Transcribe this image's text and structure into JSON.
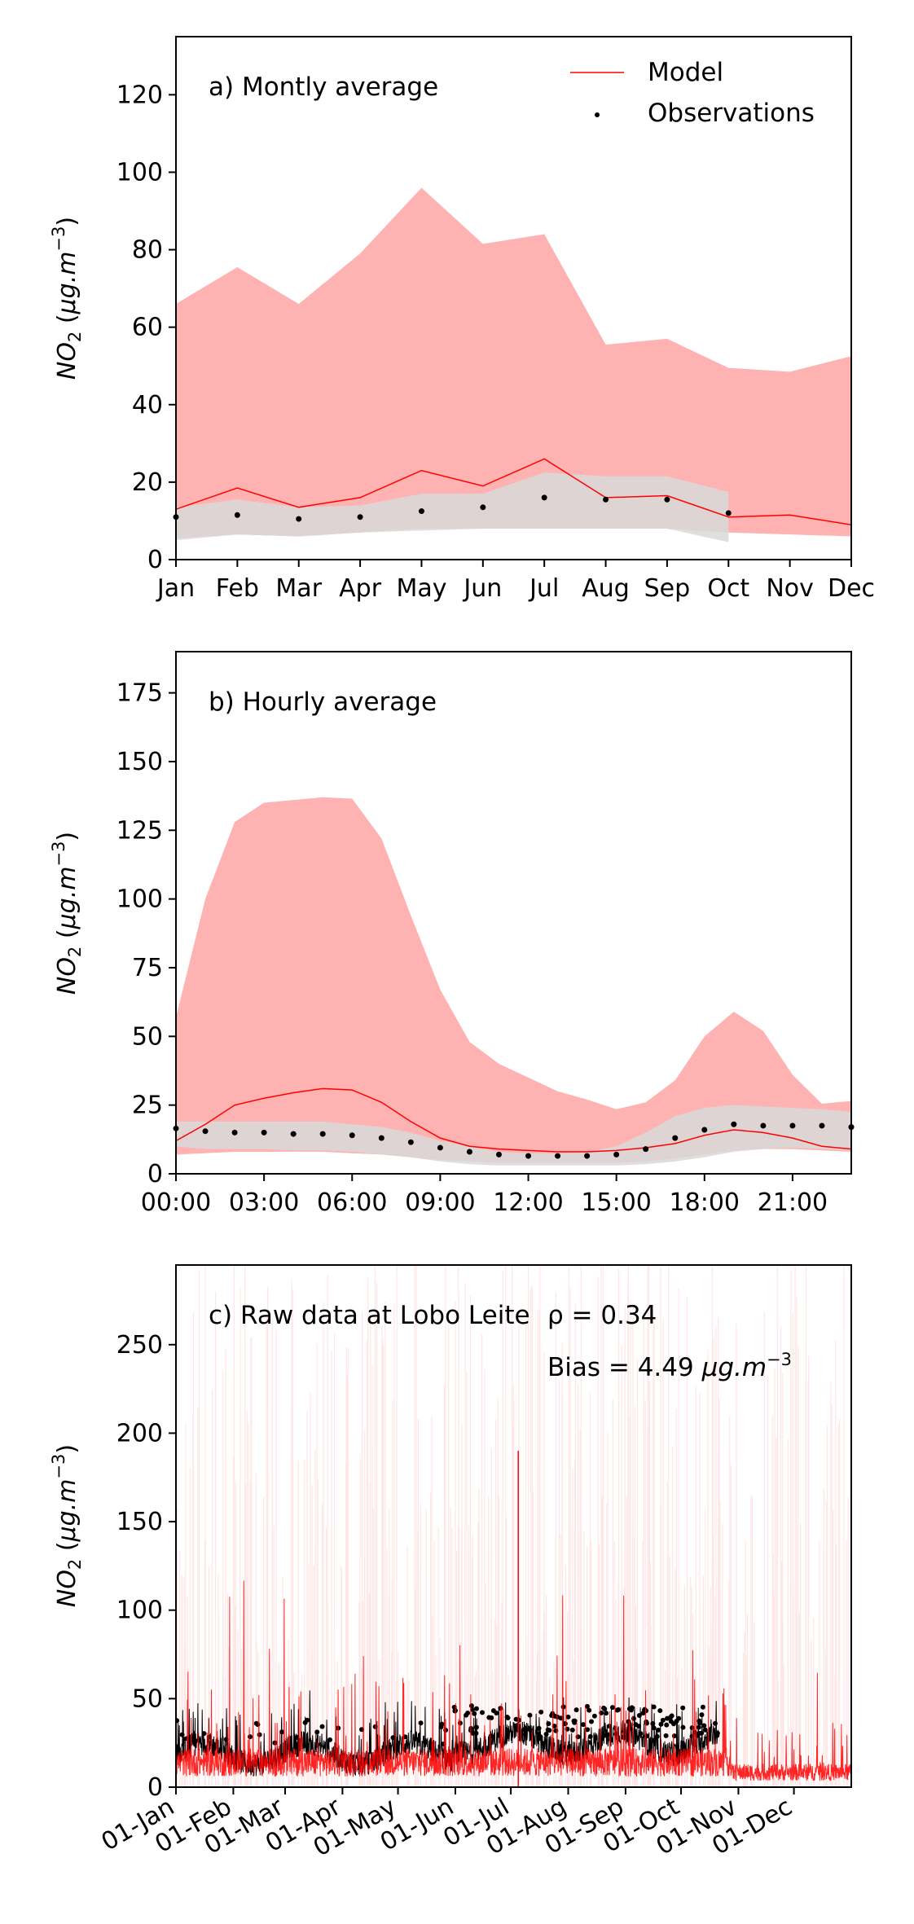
{
  "colors": {
    "model": "#ff0000",
    "model_band": "#ffb2b2",
    "obs_band": "#d9d9d9",
    "obs_band_dark": "#a8a8a8",
    "obs": "#000000"
  },
  "legend": {
    "model": "Model",
    "observations": "Observations"
  },
  "chart_data": [
    {
      "type": "line",
      "panel_label": "a) Montly average",
      "ylabel": "NO2 (μg.m-3)",
      "ylim": [
        0,
        135
      ],
      "yticks": [
        0,
        20,
        40,
        60,
        80,
        100,
        120
      ],
      "categories": [
        "Jan",
        "Feb",
        "Mar",
        "Apr",
        "May",
        "Jun",
        "Jul",
        "Aug",
        "Sep",
        "Oct",
        "Nov",
        "Dec"
      ],
      "series": [
        {
          "name": "Model",
          "kind": "line",
          "values": [
            13,
            18.5,
            13.5,
            16,
            23,
            19,
            26,
            16,
            16.5,
            11,
            11.5,
            9
          ]
        },
        {
          "name": "Observations",
          "kind": "points",
          "values": [
            11,
            11.5,
            10.5,
            11,
            12.5,
            13.5,
            16,
            15.5,
            15.5,
            12,
            null,
            null
          ]
        }
      ],
      "model_band": {
        "upper": [
          66,
          75.5,
          66,
          79,
          96,
          81.5,
          84,
          55.5,
          57,
          49.5,
          48.5,
          52.5
        ],
        "lower": [
          5.5,
          6.5,
          6,
          7,
          8,
          8,
          8,
          8,
          8,
          7,
          6.5,
          6
        ]
      },
      "obs_band": {
        "upper": [
          13.5,
          15.5,
          13.5,
          14,
          17,
          17,
          22.5,
          21.5,
          21.5,
          17.5
        ],
        "lower": [
          5,
          6.5,
          6,
          7,
          7.5,
          8,
          8,
          8,
          8,
          4.5
        ]
      }
    },
    {
      "type": "line",
      "panel_label": "b) Hourly average",
      "ylabel": "NO2 (μg.m-3)",
      "ylim": [
        0,
        190
      ],
      "yticks": [
        0,
        25,
        50,
        75,
        100,
        125,
        150,
        175
      ],
      "xlim": [
        0,
        23
      ],
      "xticks": [
        "00:00",
        "03:00",
        "06:00",
        "09:00",
        "12:00",
        "15:00",
        "18:00",
        "21:00"
      ],
      "x": [
        0,
        1,
        2,
        3,
        4,
        5,
        6,
        7,
        8,
        9,
        10,
        11,
        12,
        13,
        14,
        15,
        16,
        17,
        18,
        19,
        20,
        21,
        22,
        23
      ],
      "series": [
        {
          "name": "Model",
          "kind": "line",
          "values": [
            12,
            18,
            25,
            27.5,
            29.5,
            31,
            30.5,
            26,
            19,
            13,
            10,
            9,
            8.5,
            8,
            8,
            8.5,
            9.5,
            11,
            14,
            16,
            15,
            13,
            10,
            9
          ]
        },
        {
          "name": "Observations",
          "kind": "points",
          "values": [
            16.5,
            15.5,
            15,
            15,
            14.5,
            14.5,
            14,
            13,
            11.5,
            9.5,
            8,
            7,
            6.5,
            6.5,
            6.5,
            7,
            9,
            13,
            16,
            18,
            17.5,
            17.5,
            17.5,
            17
          ]
        }
      ],
      "model_band": {
        "upper": [
          57,
          100,
          128,
          135,
          136,
          137,
          136.5,
          122,
          94,
          67,
          48,
          40,
          35,
          30,
          27,
          23.5,
          26,
          34,
          50,
          59,
          52,
          36,
          25.5,
          26.5
        ],
        "lower": [
          7,
          7.5,
          8,
          8,
          8,
          8,
          7.5,
          7,
          6,
          5,
          4.5,
          4,
          4,
          4,
          4,
          4,
          4.5,
          5.5,
          7,
          8.5,
          9,
          9,
          8.5,
          8
        ]
      },
      "obs_band": {
        "upper": [
          19,
          19,
          19,
          19,
          19,
          19,
          18,
          17,
          15,
          12,
          10,
          8,
          7.5,
          7.5,
          8,
          10,
          15,
          21,
          24,
          25,
          24.5,
          24,
          23.5,
          22.5
        ],
        "lower": [
          10,
          9,
          9,
          9,
          8.5,
          8.5,
          8,
          7,
          6,
          4.5,
          3.5,
          3,
          3,
          3,
          3,
          3,
          3.5,
          4.5,
          6,
          8,
          9,
          9.5,
          9,
          8.5
        ]
      }
    },
    {
      "type": "line",
      "panel_label": "c) Raw data at Lobo Leite",
      "stat_rho": "ρ = 0.34",
      "stat_bias": "Bias = 4.49 μg.m-3",
      "ylabel": "NO2 (μg.m-3)",
      "ylim": [
        0,
        295
      ],
      "yticks": [
        0,
        50,
        100,
        150,
        200,
        250
      ],
      "xlim": [
        0,
        365
      ],
      "xticks": [
        "01-Jan",
        "01-Feb",
        "01-Mar",
        "01-Apr",
        "01-May",
        "01-Jun",
        "01-Jul",
        "01-Aug",
        "01-Sep",
        "01-Oct",
        "01-Nov",
        "01-Dec"
      ],
      "xtick_days": [
        0,
        31,
        59,
        90,
        120,
        151,
        181,
        212,
        243,
        273,
        304,
        334
      ],
      "model_max": 190,
      "model_peak_day": 185,
      "obs_end_day": 293,
      "series": [
        {
          "name": "Model",
          "kind": "line"
        },
        {
          "name": "Observations",
          "kind": "points"
        }
      ]
    }
  ]
}
